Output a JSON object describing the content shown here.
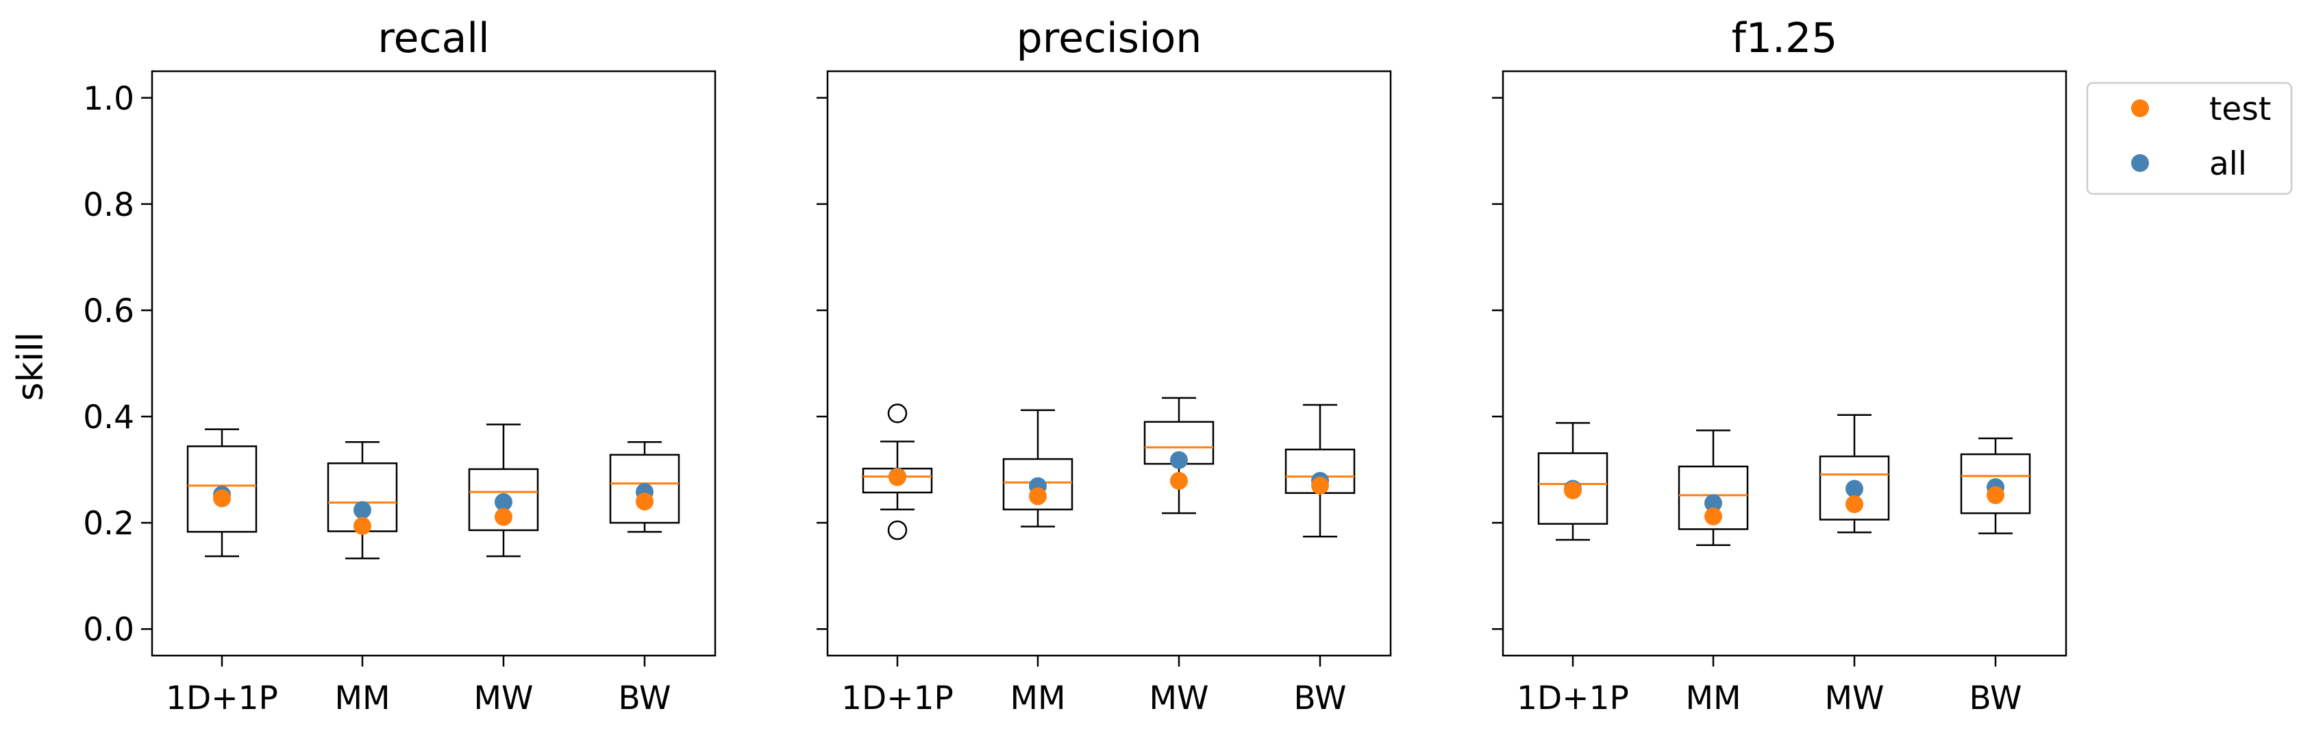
{
  "chart_data": {
    "type": "box",
    "shared_ylabel": "skill",
    "ylim": [
      -0.05,
      1.05
    ],
    "yticks": [
      "0.0",
      "0.2",
      "0.4",
      "0.6",
      "0.8",
      "1.0"
    ],
    "yticks_values": [
      0.0,
      0.2,
      0.4,
      0.6,
      0.8,
      1.0
    ],
    "categories": [
      "1D+1P",
      "MM",
      "MW",
      "BW"
    ],
    "legend": {
      "position": "right-top-outside",
      "entries": [
        {
          "label": "test",
          "color": "#ff7f0e"
        },
        {
          "label": "all",
          "color": "#4682b4"
        }
      ]
    },
    "colors": {
      "median": "#ff7f0e",
      "test": "#ff7f0e",
      "all": "#4682b4",
      "box": "#000000"
    },
    "panels": [
      {
        "title": "recall",
        "boxes": [
          {
            "category": "1D+1P",
            "whisker_low": 0.137,
            "q1": 0.183,
            "median": 0.27,
            "q3": 0.344,
            "whisker_high": 0.376,
            "outliers": []
          },
          {
            "category": "MM",
            "whisker_low": 0.133,
            "q1": 0.184,
            "median": 0.238,
            "q3": 0.312,
            "whisker_high": 0.352,
            "outliers": []
          },
          {
            "category": "MW",
            "whisker_low": 0.137,
            "q1": 0.186,
            "median": 0.258,
            "q3": 0.301,
            "whisker_high": 0.385,
            "outliers": []
          },
          {
            "category": "BW",
            "whisker_low": 0.183,
            "q1": 0.2,
            "median": 0.274,
            "q3": 0.328,
            "whisker_high": 0.352,
            "outliers": []
          }
        ],
        "series": [
          {
            "name": "all",
            "values": [
              0.253,
              0.224,
              0.239,
              0.258
            ]
          },
          {
            "name": "test",
            "values": [
              0.246,
              0.194,
              0.211,
              0.24
            ]
          }
        ]
      },
      {
        "title": "precision",
        "boxes": [
          {
            "category": "1D+1P",
            "whisker_low": 0.225,
            "q1": 0.257,
            "median": 0.287,
            "q3": 0.302,
            "whisker_high": 0.353,
            "outliers": [
              0.186,
              0.406
            ]
          },
          {
            "category": "MM",
            "whisker_low": 0.193,
            "q1": 0.225,
            "median": 0.276,
            "q3": 0.32,
            "whisker_high": 0.412,
            "outliers": []
          },
          {
            "category": "MW",
            "whisker_low": 0.218,
            "q1": 0.311,
            "median": 0.342,
            "q3": 0.39,
            "whisker_high": 0.435,
            "outliers": []
          },
          {
            "category": "BW",
            "whisker_low": 0.174,
            "q1": 0.256,
            "median": 0.287,
            "q3": 0.338,
            "whisker_high": 0.422,
            "outliers": []
          }
        ],
        "series": [
          {
            "name": "all",
            "values": [
              0.287,
              0.269,
              0.318,
              0.279
            ]
          },
          {
            "name": "test",
            "values": [
              0.286,
              0.25,
              0.279,
              0.27
            ]
          }
        ]
      },
      {
        "title": "f1.25",
        "boxes": [
          {
            "category": "1D+1P",
            "whisker_low": 0.168,
            "q1": 0.198,
            "median": 0.273,
            "q3": 0.331,
            "whisker_high": 0.388,
            "outliers": []
          },
          {
            "category": "MM",
            "whisker_low": 0.158,
            "q1": 0.188,
            "median": 0.252,
            "q3": 0.306,
            "whisker_high": 0.374,
            "outliers": []
          },
          {
            "category": "MW",
            "whisker_low": 0.182,
            "q1": 0.206,
            "median": 0.291,
            "q3": 0.325,
            "whisker_high": 0.403,
            "outliers": []
          },
          {
            "category": "BW",
            "whisker_low": 0.18,
            "q1": 0.218,
            "median": 0.288,
            "q3": 0.329,
            "whisker_high": 0.359,
            "outliers": []
          }
        ],
        "series": [
          {
            "name": "all",
            "values": [
              0.264,
              0.237,
              0.264,
              0.267
            ]
          },
          {
            "name": "test",
            "values": [
              0.261,
              0.212,
              0.235,
              0.252
            ]
          }
        ]
      }
    ]
  }
}
